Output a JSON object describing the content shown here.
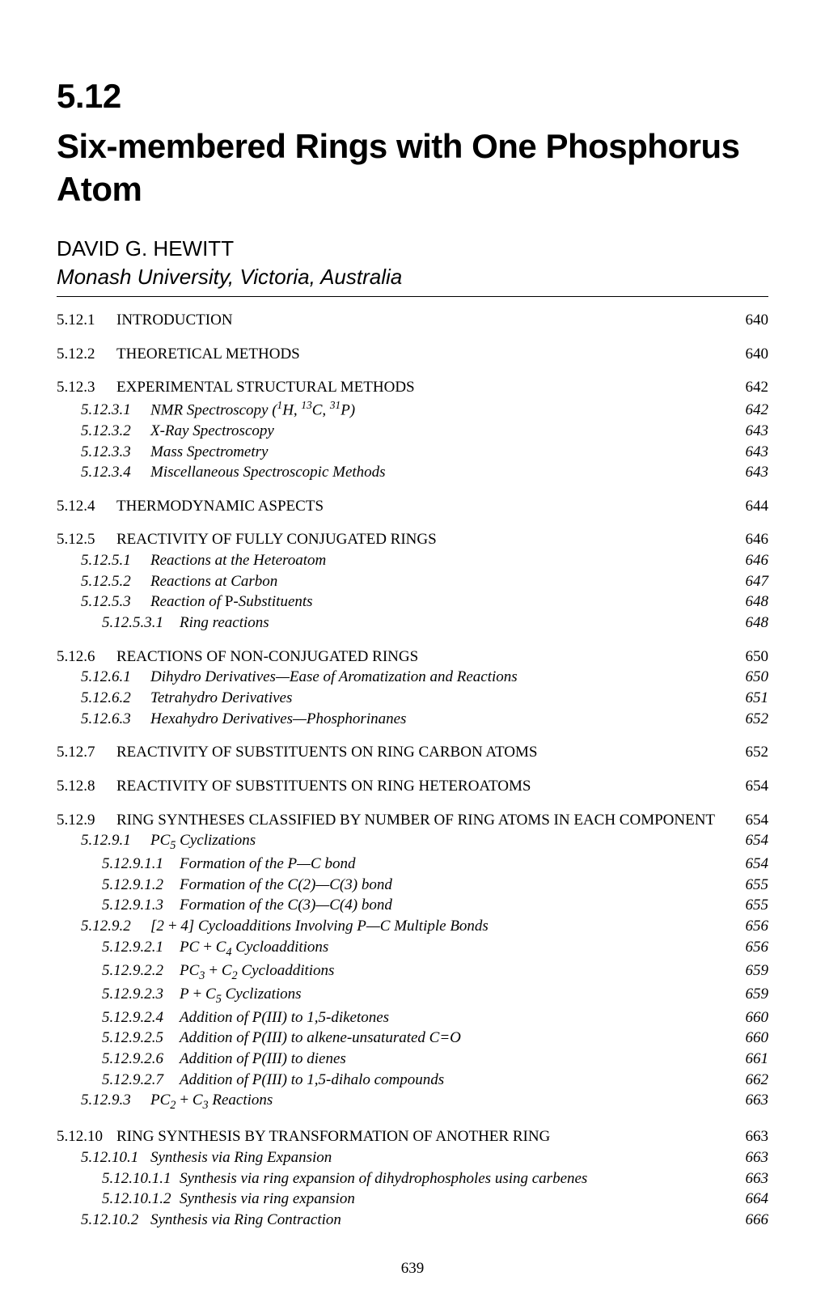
{
  "chapter_number": "5.12",
  "chapter_title": "Six-membered Rings with One Phosphorus Atom",
  "author": "DAVID G. HEWITT",
  "affiliation": "Monash University, Victoria, Australia",
  "page_number": "639",
  "toc": [
    {
      "level": 1,
      "num": "5.12.1",
      "label": "INTRODUCTION",
      "page": "640"
    },
    {
      "level": 1,
      "num": "5.12.2",
      "label": "THEORETICAL METHODS",
      "page": "640"
    },
    {
      "level": 1,
      "num": "5.12.3",
      "label": "EXPERIMENTAL STRUCTURAL METHODS",
      "page": "642"
    },
    {
      "level": 2,
      "num": "5.12.3.1",
      "label_html": "NMR Spectroscopy (<sup>1</sup>H, <sup>13</sup>C, <sup>31</sup>P)",
      "page": "642"
    },
    {
      "level": 2,
      "num": "5.12.3.2",
      "label": "X-Ray Spectroscopy",
      "page": "643"
    },
    {
      "level": 2,
      "num": "5.12.3.3",
      "label": "Mass Spectrometry",
      "page": "643"
    },
    {
      "level": 2,
      "num": "5.12.3.4",
      "label": "Miscellaneous Spectroscopic Methods",
      "page": "643"
    },
    {
      "level": 1,
      "num": "5.12.4",
      "label": "THERMODYNAMIC ASPECTS",
      "page": "644"
    },
    {
      "level": 1,
      "num": "5.12.5",
      "label": "REACTIVITY OF FULLY CONJUGATED RINGS",
      "page": "646"
    },
    {
      "level": 2,
      "num": "5.12.5.1",
      "label": "Reactions at the Heteroatom",
      "page": "646"
    },
    {
      "level": 2,
      "num": "5.12.5.2",
      "label": "Reactions at Carbon",
      "page": "647"
    },
    {
      "level": 2,
      "num": "5.12.5.3",
      "label_html": "Reaction of <span class=\"roman\">P</span>-Substituents",
      "page": "648"
    },
    {
      "level": 3,
      "num": "5.12.5.3.1",
      "label": "Ring reactions",
      "page": "648"
    },
    {
      "level": 1,
      "num": "5.12.6",
      "label": "REACTIONS OF NON-CONJUGATED RINGS",
      "page": "650"
    },
    {
      "level": 2,
      "num": "5.12.6.1",
      "label": "Dihydro Derivatives—Ease of Aromatization and Reactions",
      "page": "650"
    },
    {
      "level": 2,
      "num": "5.12.6.2",
      "label": "Tetrahydro Derivatives",
      "page": "651"
    },
    {
      "level": 2,
      "num": "5.12.6.3",
      "label": "Hexahydro Derivatives—Phosphorinanes",
      "page": "652"
    },
    {
      "level": 1,
      "num": "5.12.7",
      "label": "REACTIVITY OF SUBSTITUENTS ON RING CARBON ATOMS",
      "page": "652"
    },
    {
      "level": 1,
      "num": "5.12.8",
      "label": "REACTIVITY OF SUBSTITUENTS ON RING HETEROATOMS",
      "page": "654"
    },
    {
      "level": 1,
      "num": "5.12.9",
      "label": "RING SYNTHESES CLASSIFIED BY NUMBER OF RING ATOMS IN EACH COMPONENT",
      "page": "654"
    },
    {
      "level": 2,
      "num": "5.12.9.1",
      "label_html": "PC<sub>5</sub> Cyclizations",
      "page": "654"
    },
    {
      "level": 3,
      "num": "5.12.9.1.1",
      "label": "Formation of the P—C bond",
      "page": "654"
    },
    {
      "level": 3,
      "num": "5.12.9.1.2",
      "label": "Formation of the C(2)—C(3) bond",
      "page": "655"
    },
    {
      "level": 3,
      "num": "5.12.9.1.3",
      "label": "Formation of the C(3)—C(4) bond",
      "page": "655"
    },
    {
      "level": 2,
      "num": "5.12.9.2",
      "label_html": "[2&thinsp;+&thinsp;4] Cycloadditions Involving P—C Multiple Bonds",
      "page": "656"
    },
    {
      "level": 3,
      "num": "5.12.9.2.1",
      "label_html": "PC&thinsp;+&thinsp;C<sub>4</sub> Cycloadditions",
      "page": "656"
    },
    {
      "level": 3,
      "num": "5.12.9.2.2",
      "label_html": "PC<sub>3</sub>&thinsp;+&thinsp;C<sub>2</sub> Cycloadditions",
      "page": "659"
    },
    {
      "level": 3,
      "num": "5.12.9.2.3",
      "label_html": "P&thinsp;+&thinsp;C<sub>5</sub> Cyclizations",
      "page": "659"
    },
    {
      "level": 3,
      "num": "5.12.9.2.4",
      "label": "Addition of P(III) to 1,5-diketones",
      "page": "660"
    },
    {
      "level": 3,
      "num": "5.12.9.2.5",
      "label_html": "Addition of P(III) to alkene-unsaturated C&#61;O",
      "page": "660"
    },
    {
      "level": 3,
      "num": "5.12.9.2.6",
      "label": "Addition of P(III) to dienes",
      "page": "661"
    },
    {
      "level": 3,
      "num": "5.12.9.2.7",
      "label": "Addition of P(III) to 1,5-dihalo compounds",
      "page": "662"
    },
    {
      "level": 2,
      "num": "5.12.9.3",
      "label_html": "PC<sub>2</sub>&thinsp;+&thinsp;C<sub>3</sub> Reactions",
      "page": "663"
    },
    {
      "level": 1,
      "num": "5.12.10",
      "label": "RING SYNTHESIS BY TRANSFORMATION OF ANOTHER RING",
      "page": "663"
    },
    {
      "level": 2,
      "num": "5.12.10.1",
      "label": "Synthesis via Ring Expansion",
      "page": "663"
    },
    {
      "level": 3,
      "num": "5.12.10.1.1",
      "label": "Synthesis via ring expansion of dihydrophospholes using carbenes",
      "page": "663"
    },
    {
      "level": 3,
      "num": "5.12.10.1.2",
      "label": "Synthesis via ring expansion",
      "page": "664"
    },
    {
      "level": 2,
      "num": "5.12.10.2",
      "label": "Synthesis via Ring Contraction",
      "page": "666"
    }
  ]
}
